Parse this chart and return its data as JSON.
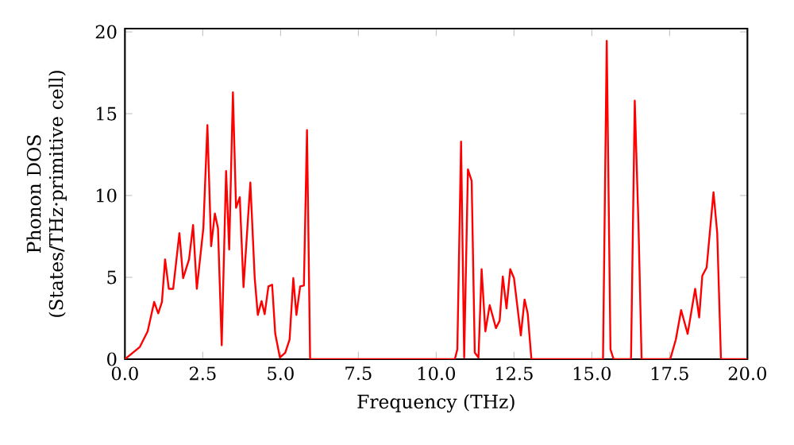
{
  "chart_data": {
    "type": "line",
    "xlabel": "Frequency (THz)",
    "ylabel": "Phonon DOS (States/THz·primitive cell)",
    "xlim": [
      0,
      20
    ],
    "ylim": [
      0,
      20.2
    ],
    "xticks": [
      {
        "value": 0,
        "label": "0.0"
      },
      {
        "value": 2.5,
        "label": "2.5"
      },
      {
        "value": 5,
        "label": "5.0"
      },
      {
        "value": 7.5,
        "label": "7.5"
      },
      {
        "value": 10,
        "label": "10.0"
      },
      {
        "value": 12.5,
        "label": "12.5"
      },
      {
        "value": 15,
        "label": "15.0"
      },
      {
        "value": 17.5,
        "label": "17.5"
      },
      {
        "value": 20,
        "label": "20.0"
      }
    ],
    "yticks": [
      0,
      5,
      10,
      15,
      20
    ],
    "series": [
      {
        "color": "#ff0000",
        "x": [
          0,
          0.48,
          0.73,
          0.94,
          1.07,
          1.19,
          1.29,
          1.41,
          1.55,
          1.75,
          1.87,
          2.06,
          2.19,
          2.31,
          2.52,
          2.65,
          2.77,
          2.89,
          2.99,
          3.11,
          3.25,
          3.35,
          3.47,
          3.57,
          3.69,
          3.81,
          4.03,
          4.17,
          4.27,
          4.39,
          4.49,
          4.61,
          4.73,
          4.83,
          4.98,
          5.15,
          5.29,
          5.41,
          5.51,
          5.63,
          5.75,
          5.85,
          5.95,
          9.74,
          10.6,
          10.68,
          10.8,
          10.9,
          11.02,
          11.14,
          11.24,
          11.36,
          11.46,
          11.58,
          11.72,
          11.92,
          12.04,
          12.14,
          12.26,
          12.38,
          12.5,
          12.72,
          12.84,
          12.94,
          13.06,
          15.36,
          15.48,
          15.6,
          15.7,
          16.26,
          16.38,
          16.5,
          16.6,
          17.52,
          17.7,
          17.87,
          18.08,
          18.32,
          18.45,
          18.55,
          18.69,
          18.91,
          19.03,
          19.15,
          20
        ],
        "values": [
          0,
          0.75,
          1.7,
          3.5,
          2.8,
          3.5,
          6.1,
          4.3,
          4.3,
          7.7,
          4.95,
          6.1,
          8.2,
          4.3,
          8.0,
          14.3,
          6.9,
          8.9,
          8.0,
          0.85,
          11.5,
          6.7,
          16.3,
          9.25,
          9.9,
          4.4,
          10.8,
          4.95,
          2.7,
          3.55,
          2.75,
          4.45,
          4.55,
          1.55,
          0.1,
          0.4,
          1.2,
          4.95,
          2.7,
          4.45,
          4.5,
          14.0,
          0,
          0,
          0,
          0.6,
          13.3,
          0.1,
          11.6,
          10.9,
          0.4,
          0.1,
          5.5,
          1.7,
          3.3,
          1.9,
          2.35,
          5.05,
          3.1,
          5.5,
          4.95,
          1.45,
          3.65,
          2.8,
          0,
          0,
          19.45,
          0.6,
          0,
          0,
          15.8,
          8.2,
          0,
          0,
          1.2,
          3.0,
          1.55,
          4.3,
          2.55,
          5.1,
          5.6,
          10.2,
          7.7,
          0,
          0
        ]
      }
    ]
  }
}
